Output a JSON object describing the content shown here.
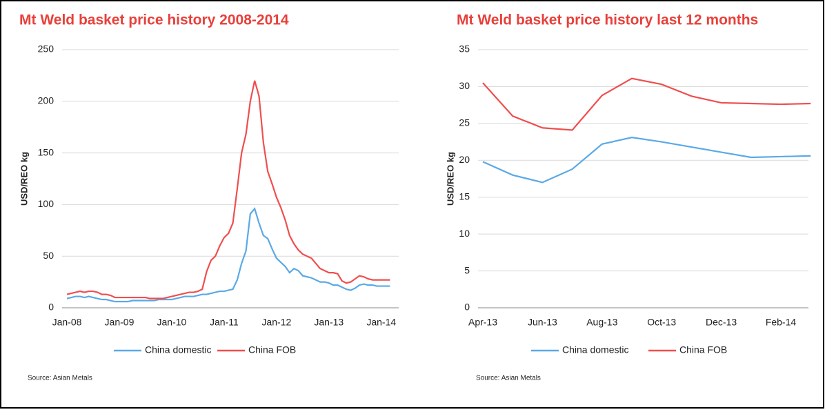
{
  "chart_data": [
    {
      "type": "line",
      "title": "Mt Weld basket price history 2008-2014",
      "ylabel": "USD/REO kg",
      "source": "Source: Asian Metals",
      "categories": [
        "Jan-08",
        null,
        null,
        null,
        null,
        null,
        null,
        null,
        null,
        null,
        null,
        null,
        "Jan-09",
        null,
        null,
        null,
        null,
        null,
        null,
        null,
        null,
        null,
        null,
        null,
        "Jan-10",
        null,
        null,
        null,
        null,
        null,
        null,
        null,
        null,
        null,
        null,
        null,
        "Jan-11",
        null,
        null,
        null,
        null,
        null,
        null,
        null,
        null,
        null,
        null,
        null,
        "Jan-12",
        null,
        null,
        null,
        null,
        null,
        null,
        null,
        null,
        null,
        null,
        null,
        "Jan-13",
        null,
        null,
        null,
        null,
        null,
        null,
        null,
        null,
        null,
        null,
        null,
        "Jan-14",
        null,
        null
      ],
      "series": [
        {
          "name": "China domestic",
          "color": "#5aa9e6",
          "values": [
            9,
            10,
            11,
            11,
            10,
            11,
            10,
            9,
            8,
            8,
            7,
            6,
            6,
            6,
            6,
            7,
            7,
            7,
            7,
            7,
            7,
            8,
            8,
            8,
            8,
            9,
            10,
            11,
            11,
            11,
            12,
            13,
            13,
            14,
            15,
            16,
            16,
            17,
            18,
            27,
            43,
            55,
            91,
            96,
            82,
            70,
            67,
            57,
            48,
            44,
            40,
            34,
            38,
            36,
            31,
            30,
            29,
            27,
            25,
            25,
            24,
            22,
            22,
            20,
            18,
            17,
            19,
            22,
            23,
            22,
            22,
            21,
            21,
            21,
            21
          ]
        },
        {
          "name": "China FOB",
          "color": "#f04e4e",
          "values": [
            13,
            14,
            15,
            16,
            15,
            16,
            16,
            15,
            13,
            13,
            12,
            10,
            10,
            10,
            10,
            10,
            10,
            10,
            10,
            9,
            9,
            9,
            9,
            10,
            11,
            12,
            13,
            14,
            15,
            15,
            16,
            18,
            35,
            46,
            50,
            60,
            68,
            72,
            82,
            115,
            150,
            168,
            200,
            220,
            205,
            160,
            132,
            120,
            107,
            97,
            85,
            70,
            62,
            56,
            52,
            50,
            48,
            43,
            38,
            36,
            34,
            34,
            33,
            26,
            24,
            25,
            28,
            31,
            30,
            28,
            27,
            27,
            27,
            27,
            27
          ]
        }
      ],
      "ylim": [
        0,
        250
      ],
      "yticks": [
        0,
        50,
        100,
        150,
        200,
        250
      ],
      "grid": true,
      "legend": "bottom"
    },
    {
      "type": "line",
      "title": "Mt Weld basket price history last 12 months",
      "ylabel": "USD/REO kg",
      "source": "Source: Asian Metals",
      "categories": [
        "Apr-13",
        null,
        "Jun-13",
        null,
        "Aug-13",
        null,
        "Oct-13",
        null,
        "Dec-13",
        null,
        "Feb-14",
        null
      ],
      "series": [
        {
          "name": "China domestic",
          "color": "#5aa9e6",
          "values": [
            19.8,
            18.0,
            17.0,
            18.8,
            22.2,
            23.1,
            22.5,
            21.8,
            21.1,
            20.4,
            20.5,
            20.6
          ]
        },
        {
          "name": "China FOB",
          "color": "#f04e4e",
          "values": [
            30.5,
            26.0,
            24.4,
            24.1,
            28.8,
            31.1,
            30.3,
            28.7,
            27.8,
            27.7,
            27.6,
            27.7
          ]
        }
      ],
      "ylim": [
        0,
        35
      ],
      "yticks": [
        0,
        5,
        10,
        15,
        20,
        25,
        30,
        35
      ],
      "grid": true,
      "legend": "bottom"
    }
  ]
}
